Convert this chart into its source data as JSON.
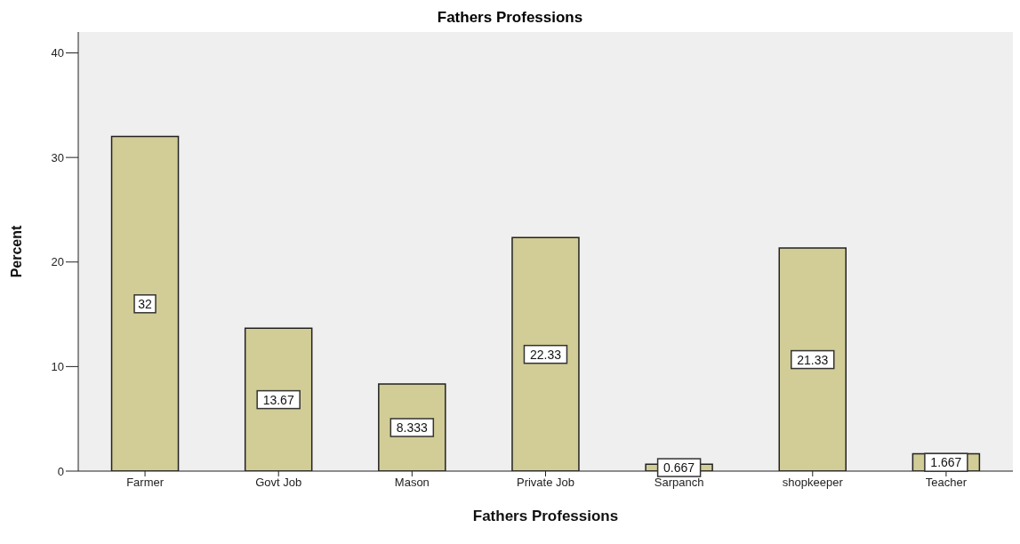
{
  "chart_data": {
    "type": "bar",
    "title": "Fathers Professions",
    "xlabel": "Fathers Professions",
    "ylabel": "Percent",
    "categories": [
      "Farmer",
      "Govt Job",
      "Mason",
      "Private Job",
      "Sarpanch",
      "shopkeeper",
      "Teacher"
    ],
    "values": [
      32,
      13.67,
      8.333,
      22.33,
      0.667,
      21.33,
      1.667
    ],
    "color": "#d2cd96",
    "ylim": [
      0,
      42
    ],
    "yticks": [
      0,
      10,
      20,
      30,
      40
    ],
    "grid": false,
    "data_labels": true
  }
}
